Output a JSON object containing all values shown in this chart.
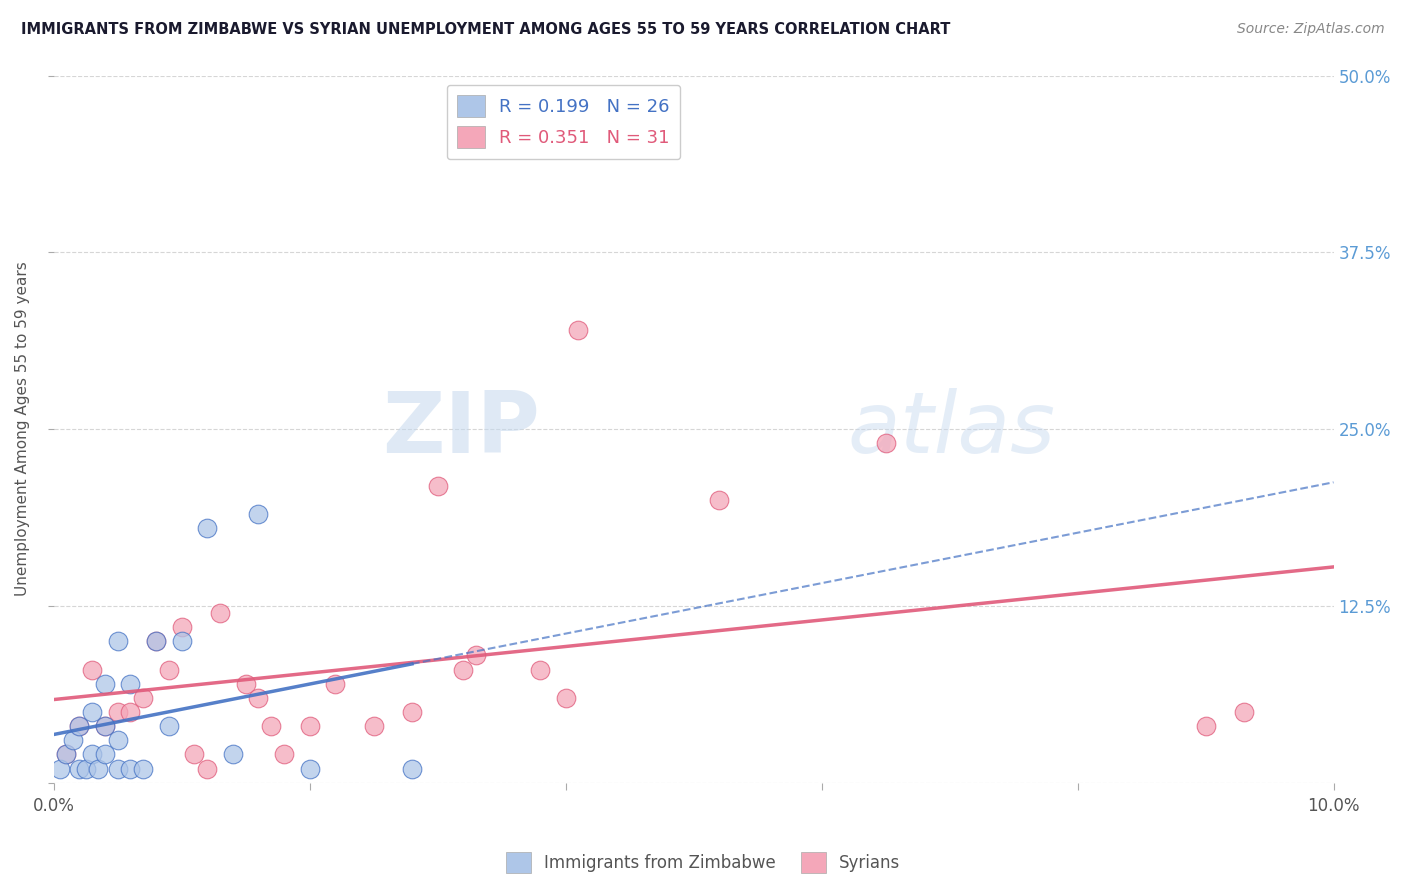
{
  "title": "IMMIGRANTS FROM ZIMBABWE VS SYRIAN UNEMPLOYMENT AMONG AGES 55 TO 59 YEARS CORRELATION CHART",
  "source": "Source: ZipAtlas.com",
  "ylabel": "Unemployment Among Ages 55 to 59 years",
  "xlim": [
    0.0,
    0.1
  ],
  "ylim": [
    0.0,
    0.5
  ],
  "xticks": [
    0.0,
    0.02,
    0.04,
    0.06,
    0.08,
    0.1
  ],
  "xticklabels": [
    "0.0%",
    "",
    "",
    "",
    "",
    "10.0%"
  ],
  "yticks_right": [
    0.0,
    0.125,
    0.25,
    0.375,
    0.5
  ],
  "yticklabels_right": [
    "",
    "12.5%",
    "25.0%",
    "37.5%",
    "50.0%"
  ],
  "grid_color": "#cccccc",
  "background_color": "#ffffff",
  "zimbabwe_color": "#aec6e8",
  "syrian_color": "#f4a7b9",
  "zimbabwe_line_color": "#4472c4",
  "syrian_line_color": "#e05a7a",
  "zimbabwe_R": 0.199,
  "zimbabwe_N": 26,
  "syrian_R": 0.351,
  "syrian_N": 31,
  "legend_label_zimbabwe": "Immigrants from Zimbabwe",
  "legend_label_syrian": "Syrians",
  "watermark_zip": "ZIP",
  "watermark_atlas": "atlas",
  "zimbabwe_x": [
    0.0005,
    0.001,
    0.0015,
    0.002,
    0.002,
    0.0025,
    0.003,
    0.003,
    0.0035,
    0.004,
    0.004,
    0.004,
    0.005,
    0.005,
    0.005,
    0.006,
    0.006,
    0.007,
    0.008,
    0.009,
    0.01,
    0.012,
    0.014,
    0.016,
    0.02,
    0.028
  ],
  "zimbabwe_y": [
    0.01,
    0.02,
    0.03,
    0.01,
    0.04,
    0.01,
    0.02,
    0.05,
    0.01,
    0.02,
    0.04,
    0.07,
    0.01,
    0.03,
    0.1,
    0.01,
    0.07,
    0.01,
    0.1,
    0.04,
    0.1,
    0.18,
    0.02,
    0.19,
    0.01,
    0.01
  ],
  "syrian_x": [
    0.001,
    0.002,
    0.003,
    0.004,
    0.005,
    0.006,
    0.007,
    0.008,
    0.009,
    0.01,
    0.011,
    0.012,
    0.013,
    0.015,
    0.016,
    0.017,
    0.018,
    0.02,
    0.022,
    0.025,
    0.028,
    0.03,
    0.032,
    0.033,
    0.038,
    0.04,
    0.041,
    0.052,
    0.065,
    0.09,
    0.093
  ],
  "syrian_y": [
    0.02,
    0.04,
    0.08,
    0.04,
    0.05,
    0.05,
    0.06,
    0.1,
    0.08,
    0.11,
    0.02,
    0.01,
    0.12,
    0.07,
    0.06,
    0.04,
    0.02,
    0.04,
    0.07,
    0.04,
    0.05,
    0.21,
    0.08,
    0.09,
    0.08,
    0.06,
    0.32,
    0.2,
    0.24,
    0.04,
    0.05
  ]
}
